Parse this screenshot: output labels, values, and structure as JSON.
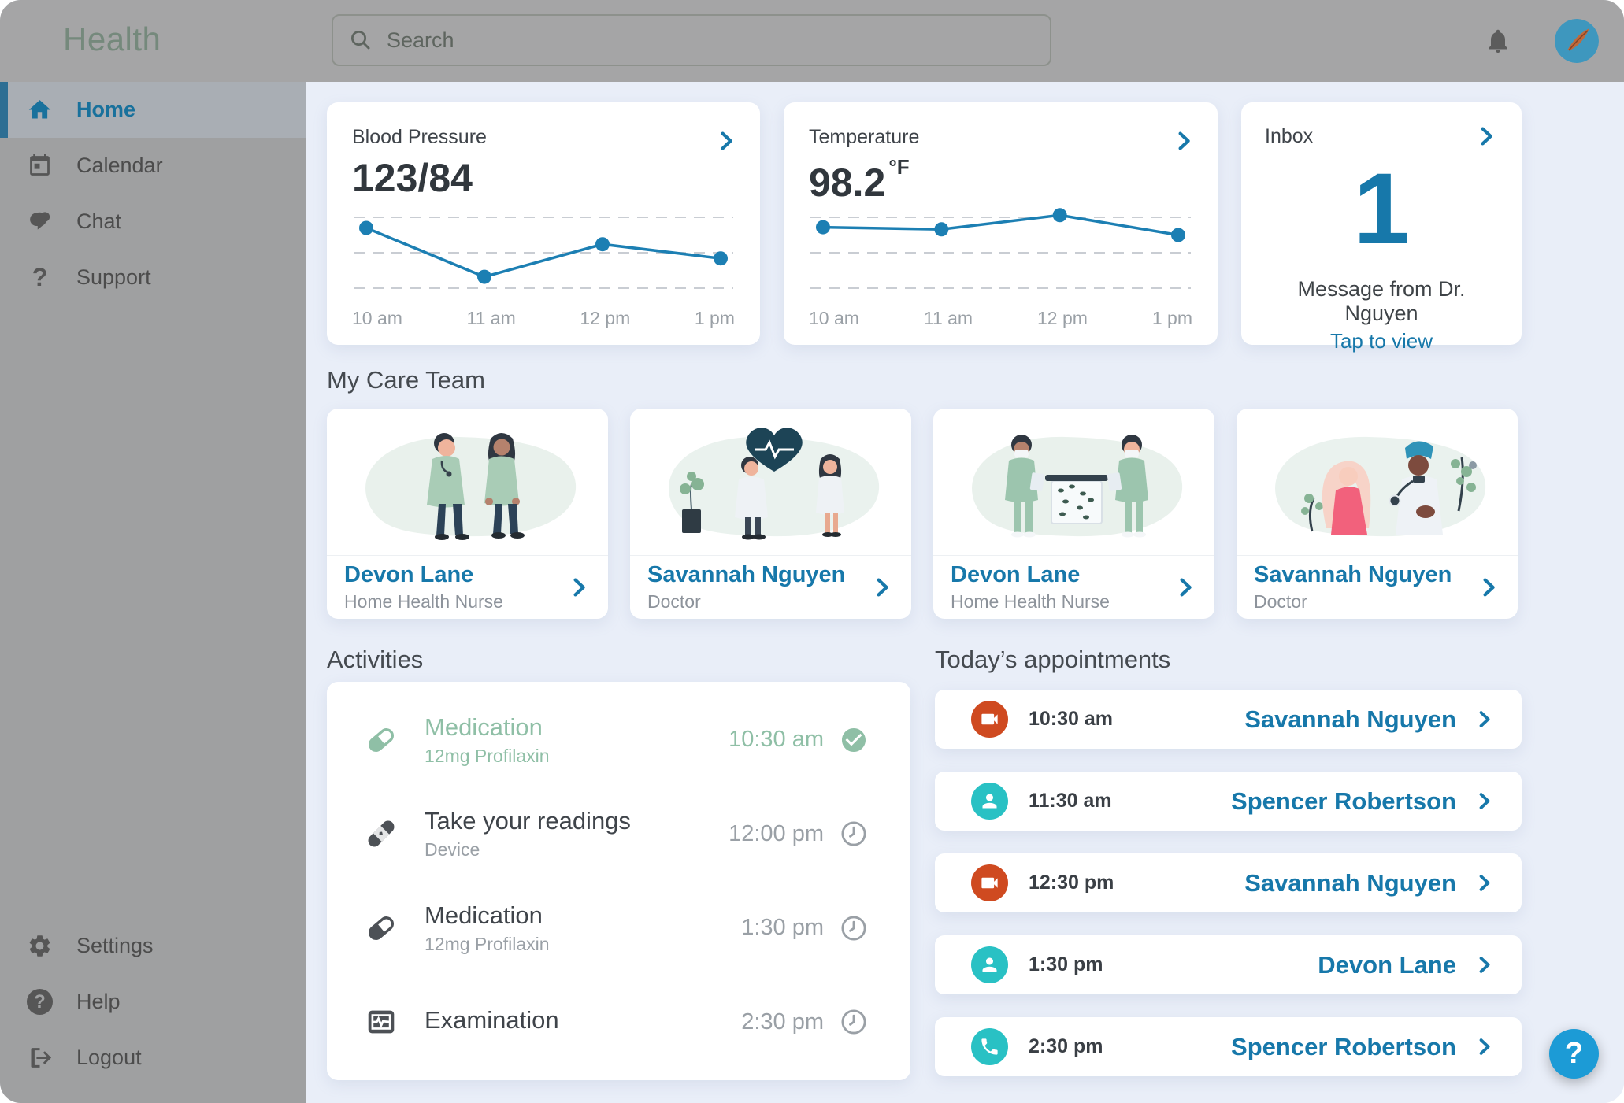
{
  "app": {
    "logo": "Health",
    "search_placeholder": "Search"
  },
  "sidebar": {
    "items": [
      {
        "label": "Home",
        "icon": "home",
        "active": true
      },
      {
        "label": "Calendar",
        "icon": "calendar",
        "active": false
      },
      {
        "label": "Chat",
        "icon": "chat",
        "active": false
      },
      {
        "label": "Support",
        "icon": "question-mark",
        "active": false,
        "glyph": "?"
      }
    ],
    "bottom_items": [
      {
        "label": "Settings",
        "icon": "gear"
      },
      {
        "label": "Help",
        "icon": "question-circle",
        "glyph": "?"
      },
      {
        "label": "Logout",
        "icon": "logout"
      }
    ]
  },
  "vitals": {
    "blood_pressure": {
      "title": "Blood Pressure",
      "value": "123/84"
    },
    "temperature": {
      "title": "Temperature",
      "value": "98.2",
      "unit": "°F"
    },
    "inbox": {
      "title": "Inbox",
      "count": "1",
      "message": "Message from Dr. Nguyen",
      "action": "Tap to view"
    }
  },
  "chart_data": [
    {
      "type": "line",
      "title": "Blood Pressure",
      "current_value_label": "123/84",
      "x": [
        "10 am",
        "11 am",
        "12 pm",
        "1 pm"
      ],
      "values": [
        85,
        16,
        62,
        42
      ],
      "ylim": [
        0,
        100
      ],
      "y_scale_note": "y-axis unlabeled; values estimated as relative height 0-100 between bottom and top dashed gridlines",
      "grid": "3 dashed horizontal gridlines",
      "legend": "none",
      "color": "#1c7fb3"
    },
    {
      "type": "line",
      "title": "Temperature",
      "current_value_label": "98.2 °F",
      "x": [
        "10 am",
        "11 am",
        "12 pm",
        "1 pm"
      ],
      "values": [
        86,
        83,
        103,
        75
      ],
      "ylim": [
        0,
        100
      ],
      "y_scale_note": "y-axis unlabeled; values estimated as relative height 0-100 between bottom and top dashed gridlines",
      "grid": "3 dashed horizontal gridlines",
      "legend": "none",
      "color": "#1c7fb3"
    }
  ],
  "care_team": {
    "title": "My Care Team",
    "members": [
      {
        "name": "Devon Lane",
        "role": "Home Health Nurse",
        "illustration": "two-nurses-standing"
      },
      {
        "name": "Savannah Nguyen",
        "role": "Doctor",
        "illustration": "doctor-and-nurse-heart-monitor"
      },
      {
        "name": "Devon Lane",
        "role": "Home Health Nurse",
        "illustration": "two-nurses-specimen-table"
      },
      {
        "name": "Savannah Nguyen",
        "role": "Doctor",
        "illustration": "doctor-examining-patient"
      }
    ]
  },
  "activities": {
    "title": "Activities",
    "items": [
      {
        "title": "Medication",
        "subtitle": "12mg Profilaxin",
        "time": "10:30 am",
        "status": "done",
        "icon": "pill"
      },
      {
        "title": "Take your readings",
        "subtitle": "Device",
        "time": "12:00 pm",
        "status": "pending",
        "icon": "bandage"
      },
      {
        "title": "Medication",
        "subtitle": "12mg Profilaxin",
        "time": "1:30 pm",
        "status": "pending",
        "icon": "pill"
      },
      {
        "title": "Examination",
        "subtitle": "",
        "time": "2:30 pm",
        "status": "pending",
        "icon": "ecg-monitor"
      }
    ]
  },
  "appointments": {
    "title": "Today’s appointments",
    "items": [
      {
        "time": "10:30 am",
        "name": "Savannah Nguyen",
        "icon": "video-call",
        "badge_color": "#cf4a20"
      },
      {
        "time": "11:30 am",
        "name": "Spencer Robertson",
        "icon": "in-person",
        "badge_color": "#29c1c4"
      },
      {
        "time": "12:30 pm",
        "name": "Savannah Nguyen",
        "icon": "video-call",
        "badge_color": "#cf4a20"
      },
      {
        "time": "1:30 pm",
        "name": "Devon Lane",
        "icon": "in-person",
        "badge_color": "#29c1c4"
      },
      {
        "time": "2:30 pm",
        "name": "Spencer Robertson",
        "icon": "phone-call",
        "badge_color": "#29c1c4"
      }
    ]
  },
  "floating_help": {
    "label": "?"
  },
  "colors": {
    "accent_blue": "#1778aa",
    "chart_line": "#1c7fb3",
    "done_green": "#8fbfa6",
    "appointment_video": "#cf4a20",
    "appointment_teal": "#29c1c4",
    "help_button": "#1c9bd6",
    "sidebar_active": "#1b6a93",
    "content_bg": "#e9eef8"
  }
}
